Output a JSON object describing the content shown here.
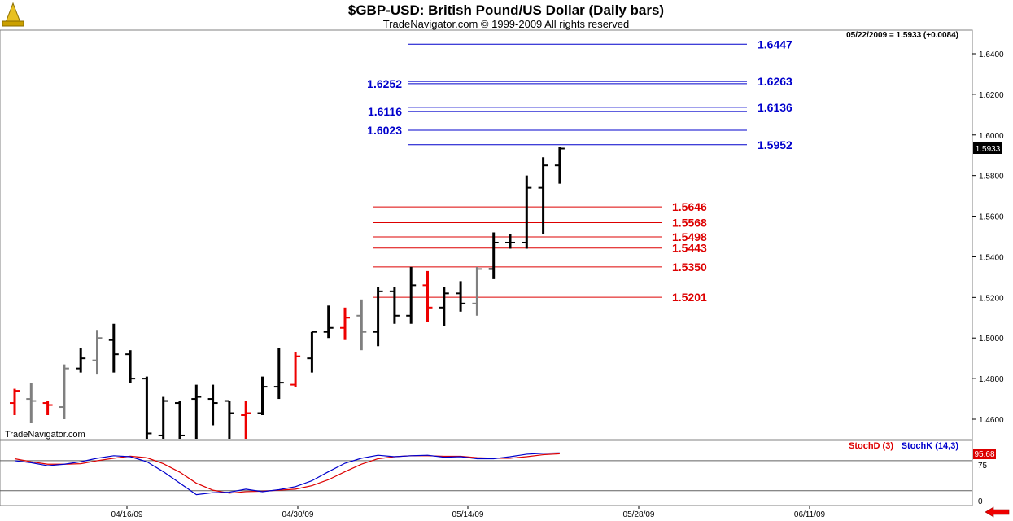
{
  "header": {
    "title": "$GBP-USD:  British Pound/US Dollar  (Daily bars)",
    "subtitle": "TradeNavigator.com © 1999-2009 All rights reserved",
    "info": "05/22/2009 = 1.5933 (+0.0084)",
    "watermark": "TradeNavigator.com"
  },
  "colors": {
    "up": "#000000",
    "down": "#ee0000",
    "inside": "#808080",
    "resistance": "#0000cc",
    "support": "#dd0000",
    "stochD": "#dd0000",
    "stochK": "#0000cc"
  },
  "chart_data": {
    "type": "ohlc",
    "y_axis": {
      "min": 1.45,
      "max": 1.6491,
      "ticks": [
        "1.4600",
        "1.4800",
        "1.5000",
        "1.5200",
        "1.5400",
        "1.5600",
        "1.5800",
        "1.6000",
        "1.6200",
        "1.6400"
      ]
    },
    "last_price": "1.5933",
    "x_axis": {
      "ticks": [
        "04/16/09",
        "04/30/09",
        "05/14/09",
        "05/28/09",
        "06/11/09"
      ]
    },
    "bars": [
      {
        "o": 1.468,
        "h": 1.475,
        "l": 1.462,
        "c": 1.474,
        "k": "down"
      },
      {
        "o": 1.47,
        "h": 1.478,
        "l": 1.458,
        "c": 1.469,
        "k": "inside"
      },
      {
        "o": 1.468,
        "h": 1.469,
        "l": 1.462,
        "c": 1.467,
        "k": "down"
      },
      {
        "o": 1.466,
        "h": 1.487,
        "l": 1.46,
        "c": 1.485,
        "k": "inside"
      },
      {
        "o": 1.485,
        "h": 1.495,
        "l": 1.483,
        "c": 1.49,
        "k": "up"
      },
      {
        "o": 1.489,
        "h": 1.504,
        "l": 1.482,
        "c": 1.5,
        "k": "inside"
      },
      {
        "o": 1.499,
        "h": 1.507,
        "l": 1.483,
        "c": 1.492,
        "k": "up"
      },
      {
        "o": 1.492,
        "h": 1.494,
        "l": 1.478,
        "c": 1.48,
        "k": "up"
      },
      {
        "o": 1.48,
        "h": 1.481,
        "l": 1.45,
        "c": 1.453,
        "k": "up"
      },
      {
        "o": 1.452,
        "h": 1.471,
        "l": 1.45,
        "c": 1.469,
        "k": "up"
      },
      {
        "o": 1.468,
        "h": 1.469,
        "l": 1.45,
        "c": 1.452,
        "k": "up"
      },
      {
        "o": 1.47,
        "h": 1.477,
        "l": 1.45,
        "c": 1.471,
        "k": "up"
      },
      {
        "o": 1.47,
        "h": 1.477,
        "l": 1.457,
        "c": 1.468,
        "k": "up"
      },
      {
        "o": 1.469,
        "h": 1.469,
        "l": 1.45,
        "c": 1.463,
        "k": "up"
      },
      {
        "o": 1.462,
        "h": 1.469,
        "l": 1.45,
        "c": 1.463,
        "k": "down"
      },
      {
        "o": 1.463,
        "h": 1.481,
        "l": 1.462,
        "c": 1.476,
        "k": "up"
      },
      {
        "o": 1.476,
        "h": 1.495,
        "l": 1.47,
        "c": 1.478,
        "k": "up"
      },
      {
        "o": 1.477,
        "h": 1.493,
        "l": 1.476,
        "c": 1.491,
        "k": "down"
      },
      {
        "o": 1.49,
        "h": 1.503,
        "l": 1.483,
        "c": 1.503,
        "k": "up"
      },
      {
        "o": 1.503,
        "h": 1.516,
        "l": 1.5,
        "c": 1.505,
        "k": "up"
      },
      {
        "o": 1.505,
        "h": 1.515,
        "l": 1.499,
        "c": 1.51,
        "k": "down"
      },
      {
        "o": 1.511,
        "h": 1.519,
        "l": 1.494,
        "c": 1.503,
        "k": "inside"
      },
      {
        "o": 1.503,
        "h": 1.525,
        "l": 1.496,
        "c": 1.523,
        "k": "up"
      },
      {
        "o": 1.523,
        "h": 1.525,
        "l": 1.507,
        "c": 1.511,
        "k": "up"
      },
      {
        "o": 1.511,
        "h": 1.535,
        "l": 1.507,
        "c": 1.526,
        "k": "up"
      },
      {
        "o": 1.526,
        "h": 1.533,
        "l": 1.508,
        "c": 1.515,
        "k": "down"
      },
      {
        "o": 1.515,
        "h": 1.525,
        "l": 1.506,
        "c": 1.522,
        "k": "up"
      },
      {
        "o": 1.522,
        "h": 1.528,
        "l": 1.513,
        "c": 1.517,
        "k": "up"
      },
      {
        "o": 1.517,
        "h": 1.535,
        "l": 1.511,
        "c": 1.534,
        "k": "inside"
      },
      {
        "o": 1.534,
        "h": 1.552,
        "l": 1.529,
        "c": 1.547,
        "k": "up"
      },
      {
        "o": 1.547,
        "h": 1.551,
        "l": 1.544,
        "c": 1.547,
        "k": "up"
      },
      {
        "o": 1.547,
        "h": 1.58,
        "l": 1.544,
        "c": 1.574,
        "k": "up"
      },
      {
        "o": 1.574,
        "h": 1.589,
        "l": 1.551,
        "c": 1.585,
        "k": "up"
      },
      {
        "o": 1.585,
        "h": 1.594,
        "l": 1.576,
        "c": 1.5933,
        "k": "up"
      }
    ],
    "resistance_levels": [
      {
        "value": 1.6447,
        "label": "1.6447",
        "side": "right"
      },
      {
        "value": 1.6263,
        "label": "1.6263",
        "side": "right"
      },
      {
        "value": 1.6252,
        "label": "1.6252",
        "side": "left"
      },
      {
        "value": 1.6136,
        "label": "1.6136",
        "side": "right"
      },
      {
        "value": 1.6116,
        "label": "1.6116",
        "side": "left"
      },
      {
        "value": 1.6023,
        "label": "1.6023",
        "side": "left"
      },
      {
        "value": 1.5952,
        "label": "1.5952",
        "side": "right"
      }
    ],
    "support_levels": [
      {
        "value": 1.5646,
        "label": "1.5646"
      },
      {
        "value": 1.5568,
        "label": "1.5568"
      },
      {
        "value": 1.5498,
        "label": "1.5498"
      },
      {
        "value": 1.5443,
        "label": "1.5443"
      },
      {
        "value": 1.535,
        "label": "1.5350"
      },
      {
        "value": 1.5201,
        "label": "1.5201"
      }
    ],
    "stochastic": {
      "legend_d": "StochD (3)",
      "legend_k": "StochK (14,3)",
      "axis_ticks": [
        "75",
        "0"
      ],
      "last_value": "95.68",
      "reference_levels": [
        80,
        20
      ],
      "k": [
        80,
        76,
        70,
        73,
        78,
        85,
        90,
        88,
        78,
        58,
        35,
        12,
        16,
        17,
        23,
        18,
        22,
        28,
        40,
        58,
        75,
        85,
        91,
        88,
        90,
        91,
        87,
        88,
        84,
        84,
        88,
        93,
        95,
        95.68
      ],
      "d": [
        84,
        78,
        73,
        73,
        74,
        80,
        85,
        89,
        86,
        74,
        57,
        35,
        21,
        15,
        18,
        19,
        21,
        23,
        30,
        42,
        58,
        73,
        84,
        88,
        90,
        90,
        89,
        89,
        86,
        85,
        85,
        88,
        92,
        94
      ]
    }
  }
}
